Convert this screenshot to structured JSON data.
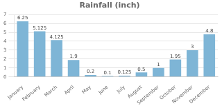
{
  "chart_data": {
    "type": "bar",
    "title": "Rainfall (inch)",
    "categories": [
      "January",
      "February",
      "March",
      "April",
      "May",
      "June",
      "July",
      "August",
      "September",
      "October",
      "November",
      "December"
    ],
    "values": [
      6.25,
      5.125,
      4.125,
      1.9,
      0.2,
      0.1,
      0.125,
      0.5,
      1,
      1.95,
      3,
      4.8
    ],
    "color": "#7EB5D6",
    "ylim": [
      0,
      7
    ],
    "yticks": [
      0,
      1,
      2,
      3,
      4,
      5,
      6,
      7
    ],
    "grid": true,
    "data_labels": true
  }
}
